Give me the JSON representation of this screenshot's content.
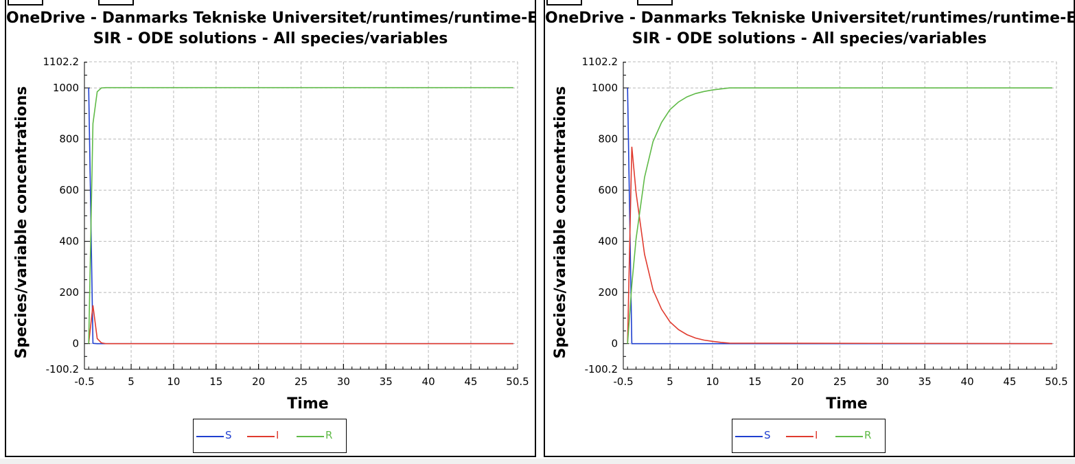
{
  "colors": {
    "S": "#1f3fcf",
    "I": "#e03a2e",
    "R": "#5fba47",
    "grid": "#b8b8b8"
  },
  "chart_data": [
    {
      "type": "line",
      "title": "OneDrive - Danmarks Tekniske Universitet/runtimes/runtime-ER",
      "subtitle": "SIR - ODE solutions - All species/variables",
      "xlabel": "Time",
      "ylabel": "Species/variable concentrations",
      "xlim": [
        -0.5,
        50.5
      ],
      "ylim": [
        -100.2,
        1102.2
      ],
      "xticks": [
        "-0.5",
        "5",
        "10",
        "15",
        "20",
        "25",
        "30",
        "35",
        "40",
        "45",
        "50.5"
      ],
      "yticks": [
        "-100.2",
        "0",
        "200",
        "400",
        "600",
        "800",
        "1000",
        "1102.2"
      ],
      "grid": true,
      "legend": "bottom-center",
      "series": [
        {
          "name": "S",
          "x": [
            0,
            0.5,
            1,
            2,
            50
          ],
          "y": [
            1000,
            1,
            0,
            0,
            0
          ]
        },
        {
          "name": "I",
          "x": [
            0,
            0.5,
            1,
            1.5,
            2,
            50
          ],
          "y": [
            1,
            150,
            20,
            3,
            0,
            0
          ]
        },
        {
          "name": "R",
          "x": [
            0,
            0.5,
            1,
            1.5,
            2,
            50
          ],
          "y": [
            0,
            860,
            985,
            1000,
            1001,
            1001
          ]
        }
      ]
    },
    {
      "type": "line",
      "title": "OneDrive - Danmarks Tekniske Universitet/runtimes/runtime-ER",
      "subtitle": "SIR - ODE solutions - All species/variables",
      "xlabel": "Time",
      "ylabel": "Species/variable concentrations",
      "xlim": [
        -0.5,
        50.5
      ],
      "ylim": [
        -100.2,
        1102.2
      ],
      "xticks": [
        "-0.5",
        "5",
        "10",
        "15",
        "20",
        "25",
        "30",
        "35",
        "40",
        "45",
        "50.5"
      ],
      "yticks": [
        "-100.2",
        "0",
        "200",
        "400",
        "600",
        "800",
        "1000",
        "1102.2"
      ],
      "grid": true,
      "legend": "bottom-center",
      "series": [
        {
          "name": "S",
          "x": [
            0,
            0.5,
            50
          ],
          "y": [
            1000,
            0,
            0
          ]
        },
        {
          "name": "I",
          "x": [
            0,
            0.5,
            1,
            2,
            3,
            4,
            5,
            6,
            7,
            8,
            9,
            10,
            11,
            12,
            50
          ],
          "y": [
            1,
            770,
            590,
            350,
            210,
            135,
            85,
            55,
            35,
            22,
            14,
            9,
            5,
            2,
            0
          ]
        },
        {
          "name": "R",
          "x": [
            0,
            0.5,
            1,
            2,
            3,
            4,
            5,
            6,
            7,
            8,
            9,
            10,
            11,
            12,
            50
          ],
          "y": [
            0,
            230,
            410,
            650,
            790,
            865,
            915,
            945,
            965,
            978,
            986,
            992,
            996,
            1000,
            1000
          ]
        }
      ]
    }
  ]
}
